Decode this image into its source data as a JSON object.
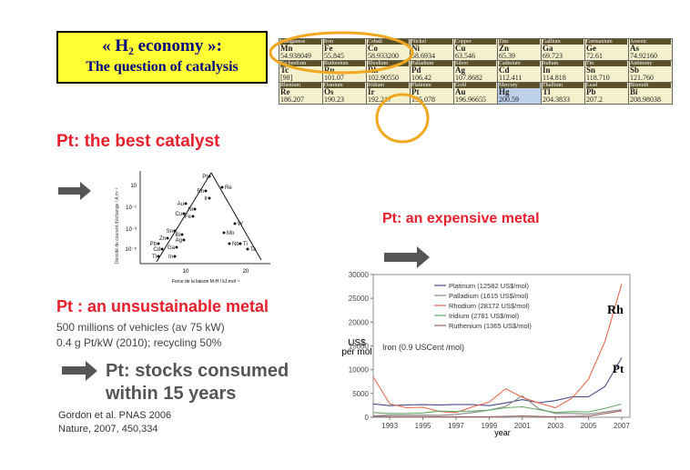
{
  "title": {
    "line1": "« H₂ economy »:",
    "line2": "The question of catalysis"
  },
  "periodic_table": {
    "rows": [
      [
        {
          "name": "Manganese",
          "sym": "Mn"
        },
        {
          "name": "Iron",
          "sym": "Fe"
        },
        {
          "name": "Cobalt",
          "sym": "Co"
        },
        {
          "name": "Nickel",
          "sym": "Ni"
        },
        {
          "name": "Copper",
          "sym": "Cu"
        },
        {
          "name": "Zinc",
          "sym": "Zn"
        },
        {
          "name": "Gallium",
          "sym": "Ga"
        },
        {
          "name": "Germanium",
          "sym": "Ge"
        },
        {
          "name": "Arsenic",
          "sym": "As"
        }
      ],
      [
        {
          "name": "Technetium",
          "sym": "Tc"
        },
        {
          "name": "Ruthenium",
          "sym": "Ru"
        },
        {
          "name": "Rhodium",
          "sym": "Rh"
        },
        {
          "name": "Palladium",
          "sym": "Pd"
        },
        {
          "name": "Silver",
          "sym": "Ag"
        },
        {
          "name": "Cadmium",
          "sym": "Cd"
        },
        {
          "name": "Indium",
          "sym": "In"
        },
        {
          "name": "Tin",
          "sym": "Sn"
        },
        {
          "name": "Antimony",
          "sym": "Sb"
        }
      ],
      [
        {
          "name": "Rhenium",
          "sym": "Re"
        },
        {
          "name": "Osmium",
          "sym": "Os"
        },
        {
          "name": "Iridium",
          "sym": "Ir"
        },
        {
          "name": "Platinum",
          "sym": "Pt"
        },
        {
          "name": "Gold",
          "sym": "Au"
        },
        {
          "name": "Mercury",
          "sym": "Hg"
        },
        {
          "name": "Thallium",
          "sym": "Tl"
        },
        {
          "name": "Lead",
          "sym": "Pb"
        },
        {
          "name": "Bismuth",
          "sym": "Bi"
        }
      ]
    ],
    "masses": [
      [
        "54.938049",
        "55.845",
        "58.933200",
        "58.6934",
        "63.546",
        "65.39",
        "69.723",
        "72.61",
        "74.92160"
      ],
      [
        "[98]",
        "101.07",
        "102.90550",
        "106.42",
        "107.8682",
        "112.411",
        "114.818",
        "118.710",
        "121.760"
      ],
      [
        "186.207",
        "190.23",
        "192.217",
        "195.078",
        "196.96655",
        "200.59",
        "204.3833",
        "207.2",
        "208.98038"
      ]
    ],
    "highlight_color": "#f0a81e"
  },
  "best_catalyst": {
    "heading": "Pt: the best catalyst"
  },
  "volcano": {
    "ylabel": "Densité de courant d'échange / A.m⁻²",
    "xlabel": "Force de la liaison  M-H / kJ.mol⁻¹",
    "yticks": [
      "10",
      "10⁻¹",
      "10⁻³",
      "10⁻⁵"
    ],
    "xticks": [
      "10",
      "20"
    ],
    "points": [
      "Pt",
      "Re",
      "Rh",
      "Ir",
      "Au",
      "Ni",
      "Cu",
      "Fe",
      "W",
      "Sn",
      "Bi",
      "Zn",
      "Ag",
      "Mo",
      "Pb",
      "Ga",
      "Cd",
      "Ti",
      "Nb",
      "Ta",
      "In",
      "Tl"
    ]
  },
  "expensive": {
    "heading": "Pt: an expensive metal"
  },
  "unsustainable": {
    "heading": "Pt : an unsustainable metal",
    "line1": "500 millions of vehicles (av 75 kW)",
    "line2": "0.4 g Pt/kW (2010);  recycling 50%",
    "stocks_line1": "Pt: stocks consumed",
    "stocks_line2": "within 15 years",
    "ref1": "Gordon et al. PNAS 2006",
    "ref2": "Nature, 2007, 450,334"
  },
  "price_chart": {
    "ylabel_line1": "US$",
    "ylabel_line2": "per mol",
    "xlabel": "year",
    "note": "Iron (0.9 USCent /mol)",
    "label_rh": "Rh",
    "label_pt": "Pt",
    "yticks": [
      "0",
      "5000",
      "10000",
      "15000",
      "20000",
      "25000",
      "30000"
    ],
    "xticks": [
      "1993",
      "1995",
      "1997",
      "1999",
      "2001",
      "2003",
      "2005",
      "2007"
    ]
  },
  "chart_data": {
    "type": "line",
    "xlabel": "year",
    "ylabel": "US$ per mol",
    "ylim": [
      0,
      30000
    ],
    "xlim": [
      1992,
      2007.5
    ],
    "legend_position": "top-center",
    "grid": false,
    "x": [
      1992,
      1993,
      1994,
      1995,
      1996,
      1997,
      1998,
      1999,
      2000,
      2001,
      2002,
      2003,
      2004,
      2005,
      2006,
      2007
    ],
    "series": [
      {
        "name": "Platinum (12582 US$/mol)",
        "color": "#4a4a8c",
        "values": [
          2800,
          2450,
          2600,
          2650,
          2600,
          2700,
          2650,
          2450,
          3000,
          3700,
          3050,
          3500,
          4300,
          4300,
          6500,
          12500
        ]
      },
      {
        "name": "Palladium (1615 US$/mol)",
        "color": "#8a8a8a",
        "values": [
          300,
          450,
          450,
          450,
          400,
          600,
          1000,
          1500,
          2300,
          4500,
          1800,
          800,
          800,
          650,
          1100,
          1600
        ]
      },
      {
        "name": "Rhodium (28172 US$/mol)",
        "color": "#e86a50",
        "values": [
          8500,
          2800,
          2000,
          2100,
          1200,
          1000,
          2200,
          3200,
          6000,
          4200,
          3000,
          2000,
          4000,
          8000,
          16000,
          28000
        ]
      },
      {
        "name": "Iridium (2781 US$/mol)",
        "color": "#66aa66",
        "values": [
          1000,
          800,
          800,
          900,
          1300,
          1200,
          1300,
          1500,
          2000,
          2200,
          1600,
          1000,
          1200,
          1100,
          1900,
          2780
        ]
      },
      {
        "name": "Ruthenium (1365 US$/mol)",
        "color": "#a06060",
        "values": [
          200,
          150,
          130,
          140,
          120,
          110,
          110,
          120,
          200,
          260,
          180,
          120,
          200,
          250,
          800,
          1365
        ]
      }
    ]
  }
}
